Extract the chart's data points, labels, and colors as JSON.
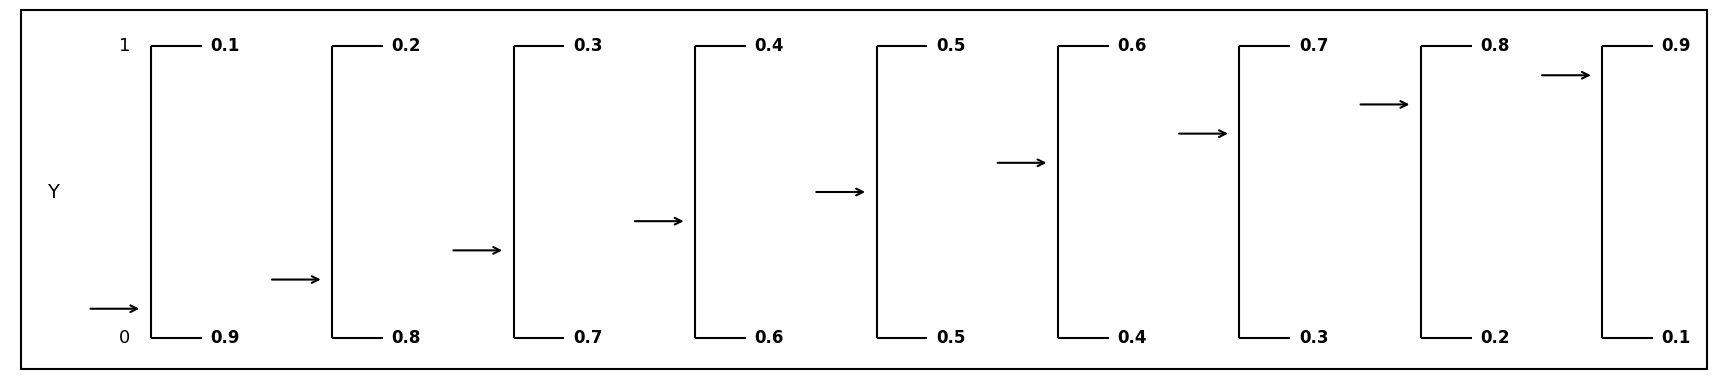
{
  "n_panels": 9,
  "p_values": [
    0.1,
    0.2,
    0.3,
    0.4,
    0.5,
    0.6,
    0.7,
    0.8,
    0.9
  ],
  "q_values": [
    0.9,
    0.8,
    0.7,
    0.6,
    0.5,
    0.4,
    0.3,
    0.2,
    0.1
  ],
  "ylabel": "Y",
  "background_color": "#ffffff",
  "line_color": "#000000",
  "text_color": "#000000",
  "fontsize_axis": 13,
  "fontsize_prob": 12,
  "fontsize_ylabel": 14
}
